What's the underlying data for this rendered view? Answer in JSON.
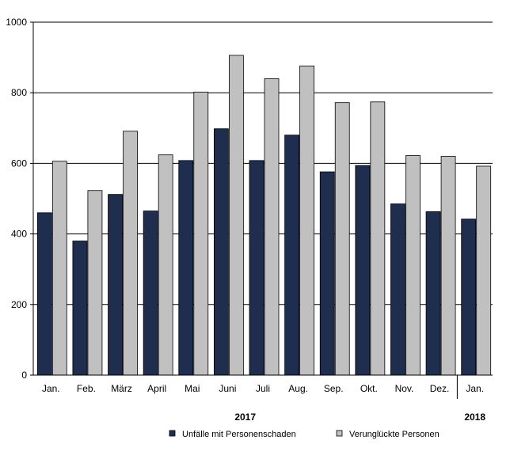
{
  "chart_data": {
    "type": "bar",
    "categories": [
      "Jan.",
      "Feb.",
      "März",
      "April",
      "Mai",
      "Juni",
      "Juli",
      "Aug.",
      "Sep.",
      "Okt.",
      "Nov.",
      "Dez.",
      "Jan."
    ],
    "series": [
      {
        "name": "Unfälle mit Personenschaden",
        "color": "#1f2d4f",
        "values": [
          460,
          380,
          512,
          465,
          608,
          698,
          608,
          680,
          576,
          594,
          485,
          463,
          442
        ]
      },
      {
        "name": "Verunglückte Personen",
        "color": "#c0c0c0",
        "values": [
          606,
          523,
          691,
          624,
          802,
          906,
          840,
          876,
          772,
          774,
          622,
          620,
          592
        ]
      }
    ],
    "year_labels": [
      {
        "label": "2017",
        "span": [
          0,
          11
        ]
      },
      {
        "label": "2018",
        "span": [
          12,
          12
        ]
      }
    ],
    "ylim": [
      0,
      1000
    ],
    "yticks": [
      0,
      200,
      400,
      600,
      800,
      1000
    ],
    "grid": true,
    "legend": "bottom"
  }
}
